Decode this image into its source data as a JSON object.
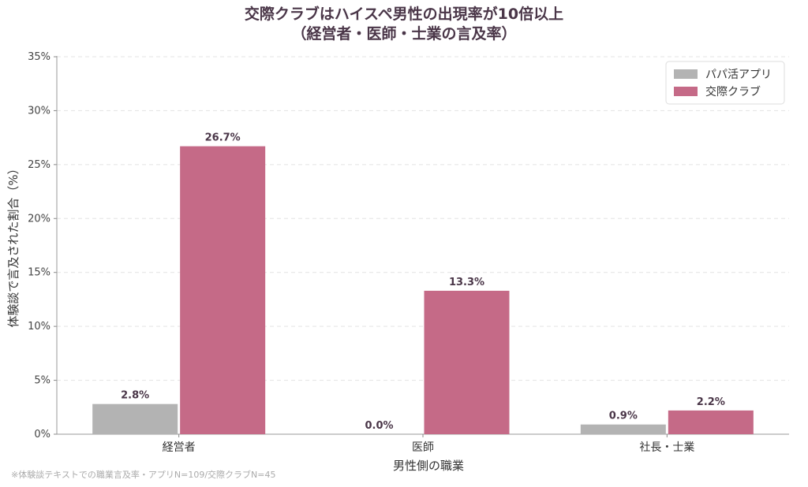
{
  "chart_data": {
    "type": "bar",
    "title_lines": [
      "交際クラブはハイスペ男性の出現率が10倍以上",
      "（経営者・医師・士業の言及率）"
    ],
    "xlabel": "男性側の職業",
    "ylabel": "体験談で言及された割合（%）",
    "categories": [
      "経営者",
      "医師",
      "社長・士業"
    ],
    "series": [
      {
        "name": "パパ活アプリ",
        "values": [
          2.8,
          0.0,
          0.9
        ],
        "labels": [
          "2.8%",
          "0.0%",
          "0.9%"
        ],
        "color": "#b3b3b3"
      },
      {
        "name": "交際クラブ",
        "values": [
          26.7,
          13.3,
          2.2
        ],
        "labels": [
          "26.7%",
          "13.3%",
          "2.2%"
        ],
        "color": "#c56a87"
      }
    ],
    "ylim": [
      0,
      35
    ],
    "yticks": [
      0,
      5,
      10,
      15,
      20,
      25,
      30,
      35
    ],
    "ytick_labels": [
      "0%",
      "5%",
      "10%",
      "15%",
      "20%",
      "25%",
      "30%",
      "35%"
    ],
    "grid": "horizontal-dashed",
    "legend_position": "top-right",
    "footnote": "※体験談テキストでの職業言及率・アプリN=109/交際クラブN=45"
  }
}
